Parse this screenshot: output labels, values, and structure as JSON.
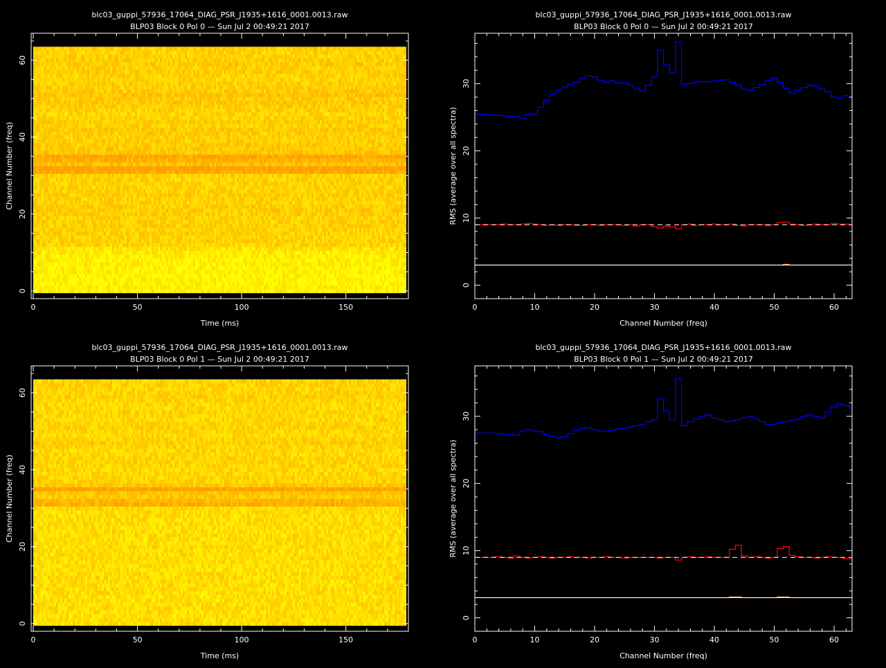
{
  "chart_data": [
    {
      "type": "heatmap",
      "title": "blc03_guppi_57936_17064_DIAG_PSR_J1935+1616_0001.0013.raw",
      "subtitle": "BLP03 Block 0 Pol 0 — Sun Jul  2 00:49:21 2017",
      "xlabel": "Time (ms)",
      "ylabel": "Channel Number (freq)",
      "xlim": [
        -1,
        180
      ],
      "ylim": [
        -2,
        67
      ],
      "xticks": [
        0,
        50,
        100,
        150
      ],
      "yticks": [
        0,
        20,
        40,
        60
      ],
      "x_extent": [
        0,
        179
      ],
      "y_extent": [
        -0.5,
        63.5
      ],
      "colormap": [
        "#ffff00",
        "#ffc800",
        "#ff9c00"
      ],
      "channel_intensity": [
        0.1,
        0.12,
        0.1,
        0.08,
        0.1,
        0.12,
        0.1,
        0.14,
        0.12,
        0.15,
        0.18,
        0.25,
        0.38,
        0.4,
        0.38,
        0.42,
        0.4,
        0.45,
        0.42,
        0.4,
        0.45,
        0.47,
        0.45,
        0.4,
        0.42,
        0.45,
        0.42,
        0.4,
        0.42,
        0.4,
        0.42,
        0.85,
        0.95,
        0.6,
        0.75,
        0.88,
        0.55,
        0.5,
        0.48,
        0.45,
        0.42,
        0.45,
        0.48,
        0.42,
        0.45,
        0.4,
        0.38,
        0.42,
        0.45,
        0.5,
        0.48,
        0.55,
        0.48,
        0.45,
        0.42,
        0.4,
        0.42,
        0.45,
        0.42,
        0.48,
        0.45,
        0.42,
        0.4,
        0.45
      ],
      "grid": false
    },
    {
      "type": "line",
      "title": "blc03_guppi_57936_17064_DIAG_PSR_J1935+1616_0001.0013.raw",
      "subtitle": "BLP03 Block 0 Pol 0 — Sun Jul  2 00:49:21 2017",
      "xlabel": "Channel Number (freq)",
      "ylabel": "RMS (average over all spectra)",
      "xlim": [
        0,
        63
      ],
      "ylim": [
        -2,
        37.5
      ],
      "xticks": [
        0,
        10,
        20,
        30,
        40,
        50,
        60
      ],
      "yticks": [
        0,
        10,
        20,
        30
      ],
      "step": true,
      "x": [
        0,
        1,
        2,
        3,
        4,
        5,
        6,
        7,
        8,
        9,
        10,
        11,
        12,
        13,
        14,
        15,
        16,
        17,
        18,
        19,
        20,
        21,
        22,
        23,
        24,
        25,
        26,
        27,
        28,
        29,
        30,
        31,
        32,
        33,
        34,
        35,
        36,
        37,
        38,
        39,
        40,
        41,
        42,
        43,
        44,
        45,
        46,
        47,
        48,
        49,
        50,
        51,
        52,
        53,
        54,
        55,
        56,
        57,
        58,
        59,
        60,
        61,
        62,
        63
      ],
      "series": [
        {
          "color": "#0000ff",
          "values": [
            25.5,
            25.4,
            25.4,
            25.3,
            25.3,
            25.2,
            25.1,
            25.1,
            24.8,
            25.4,
            25.5,
            26.5,
            27.5,
            28.4,
            29.0,
            29.5,
            29.9,
            30.2,
            30.8,
            31.2,
            31.0,
            30.5,
            30.2,
            30.4,
            30.1,
            30.2,
            29.8,
            29.2,
            28.9,
            29.8,
            31.0,
            35.0,
            32.8,
            31.6,
            36.2,
            29.9,
            30.0,
            30.2,
            30.3,
            30.3,
            30.4,
            30.5,
            30.6,
            30.2,
            29.8,
            29.2,
            29.0,
            29.4,
            29.9,
            30.4,
            30.8,
            30.2,
            29.3,
            28.6,
            29.0,
            29.4,
            29.8,
            29.6,
            29.2,
            28.8,
            28.0,
            27.8,
            28.2,
            28.0
          ]
        },
        {
          "color": "#ff0000",
          "values": [
            9.0,
            9.0,
            9.0,
            9.0,
            9.0,
            9.1,
            9.0,
            9.0,
            9.1,
            9.2,
            9.1,
            9.0,
            8.9,
            9.0,
            8.9,
            9.0,
            9.0,
            8.9,
            8.9,
            9.0,
            9.0,
            8.9,
            9.0,
            9.0,
            9.0,
            8.9,
            9.0,
            8.8,
            9.0,
            9.0,
            8.7,
            8.5,
            8.8,
            8.7,
            8.4,
            9.0,
            9.1,
            8.9,
            9.0,
            9.0,
            9.1,
            9.0,
            9.0,
            9.1,
            8.9,
            8.8,
            9.0,
            9.0,
            9.0,
            8.9,
            9.0,
            9.3,
            9.4,
            9.1,
            9.0,
            8.9,
            9.0,
            9.1,
            9.0,
            9.0,
            9.2,
            9.1,
            9.1,
            9.0
          ]
        },
        {
          "color": "#ffa040",
          "values": [
            3.0,
            3.0,
            3.0,
            3.0,
            3.0,
            3.0,
            3.0,
            3.0,
            3.0,
            3.0,
            3.0,
            3.0,
            3.0,
            3.0,
            3.0,
            3.0,
            3.0,
            3.0,
            3.0,
            3.0,
            3.0,
            3.0,
            3.0,
            3.0,
            3.0,
            3.0,
            3.0,
            3.0,
            3.0,
            3.0,
            3.0,
            3.0,
            3.0,
            3.0,
            3.0,
            3.0,
            3.0,
            3.0,
            3.0,
            3.0,
            3.0,
            3.0,
            3.0,
            3.0,
            3.0,
            3.0,
            3.0,
            3.0,
            3.0,
            3.0,
            3.0,
            3.0,
            3.1,
            3.0,
            3.0,
            3.0,
            3.0,
            3.0,
            3.0,
            3.0,
            3.0,
            3.0,
            3.0,
            3.0
          ]
        }
      ],
      "reference_lines": [
        {
          "y": 9.0,
          "style": "dashed",
          "color": "#ffffff"
        },
        {
          "y": 3.0,
          "style": "solid",
          "color": "#ffffff"
        }
      ],
      "grid": false
    },
    {
      "type": "heatmap",
      "title": "blc03_guppi_57936_17064_DIAG_PSR_J1935+1616_0001.0013.raw",
      "subtitle": "BLP03 Block 0 Pol 1 — Sun Jul  2 00:49:21 2017",
      "xlabel": "Time (ms)",
      "ylabel": "Channel Number (freq)",
      "xlim": [
        -1,
        180
      ],
      "ylim": [
        -2,
        67
      ],
      "xticks": [
        0,
        50,
        100,
        150
      ],
      "yticks": [
        0,
        20,
        40,
        60
      ],
      "x_extent": [
        0,
        179
      ],
      "y_extent": [
        -0.5,
        63.5
      ],
      "colormap": [
        "#ffff00",
        "#ffc800",
        "#ff9c00"
      ],
      "channel_intensity": [
        0.3,
        0.3,
        0.28,
        0.3,
        0.32,
        0.3,
        0.3,
        0.28,
        0.3,
        0.32,
        0.3,
        0.3,
        0.32,
        0.3,
        0.28,
        0.3,
        0.3,
        0.32,
        0.3,
        0.3,
        0.32,
        0.3,
        0.3,
        0.32,
        0.3,
        0.3,
        0.32,
        0.3,
        0.3,
        0.32,
        0.35,
        0.8,
        0.7,
        0.5,
        0.55,
        0.95,
        0.5,
        0.4,
        0.38,
        0.35,
        0.35,
        0.38,
        0.4,
        0.38,
        0.35,
        0.35,
        0.38,
        0.45,
        0.38,
        0.35,
        0.38,
        0.4,
        0.38,
        0.35,
        0.35,
        0.38,
        0.35,
        0.35,
        0.38,
        0.42,
        0.4,
        0.38,
        0.4,
        0.38
      ],
      "grid": false
    },
    {
      "type": "line",
      "title": "blc03_guppi_57936_17064_DIAG_PSR_J1935+1616_0001.0013.raw",
      "subtitle": "BLP03 Block 0 Pol 1 — Sun Jul  2 00:49:21 2017",
      "xlabel": "Channel Number (freq)",
      "ylabel": "RMS (average over all spectra)",
      "xlim": [
        0,
        63
      ],
      "ylim": [
        -2,
        37.5
      ],
      "xticks": [
        0,
        10,
        20,
        30,
        40,
        50,
        60
      ],
      "yticks": [
        0,
        10,
        20,
        30
      ],
      "step": true,
      "x": [
        0,
        1,
        2,
        3,
        4,
        5,
        6,
        7,
        8,
        9,
        10,
        11,
        12,
        13,
        14,
        15,
        16,
        17,
        18,
        19,
        20,
        21,
        22,
        23,
        24,
        25,
        26,
        27,
        28,
        29,
        30,
        31,
        32,
        33,
        34,
        35,
        36,
        37,
        38,
        39,
        40,
        41,
        42,
        43,
        44,
        45,
        46,
        47,
        48,
        49,
        50,
        51,
        52,
        53,
        54,
        55,
        56,
        57,
        58,
        59,
        60,
        61,
        62,
        63
      ],
      "series": [
        {
          "color": "#0000ff",
          "values": [
            27.4,
            27.5,
            27.5,
            27.5,
            27.4,
            27.3,
            27.3,
            27.2,
            27.8,
            28.0,
            27.8,
            27.7,
            27.3,
            27.0,
            26.8,
            27.0,
            27.4,
            27.9,
            28.2,
            28.3,
            28.0,
            27.8,
            27.8,
            27.9,
            28.1,
            28.2,
            28.4,
            28.6,
            28.8,
            29.2,
            29.5,
            32.6,
            30.8,
            29.5,
            35.6,
            28.6,
            29.2,
            29.6,
            30.0,
            30.2,
            29.8,
            29.5,
            29.2,
            29.3,
            29.5,
            29.8,
            30.0,
            29.6,
            29.2,
            28.8,
            28.8,
            29.0,
            29.2,
            29.4,
            29.6,
            30.0,
            30.2,
            30.0,
            29.8,
            30.6,
            31.4,
            31.8,
            31.6,
            31.2
          ]
        },
        {
          "color": "#ff0000",
          "values": [
            9.0,
            9.0,
            9.0,
            9.0,
            9.1,
            9.0,
            8.9,
            9.2,
            9.0,
            8.9,
            9.0,
            9.1,
            9.0,
            8.9,
            9.0,
            9.0,
            9.1,
            9.0,
            9.0,
            8.9,
            9.0,
            9.0,
            9.1,
            9.0,
            9.0,
            8.9,
            9.0,
            9.0,
            9.0,
            9.0,
            9.0,
            8.9,
            9.0,
            9.0,
            8.6,
            9.0,
            9.1,
            9.0,
            9.0,
            9.1,
            9.0,
            9.0,
            9.0,
            10.2,
            10.8,
            9.2,
            9.0,
            9.1,
            9.0,
            8.9,
            9.0,
            10.3,
            10.6,
            9.3,
            9.1,
            9.0,
            9.0,
            8.9,
            9.0,
            9.1,
            9.0,
            9.0,
            8.8,
            8.8
          ]
        },
        {
          "color": "#ffa040",
          "values": [
            3.0,
            3.0,
            3.0,
            3.0,
            3.0,
            3.0,
            3.0,
            3.0,
            3.0,
            3.0,
            3.0,
            3.0,
            3.0,
            3.0,
            3.0,
            3.0,
            3.0,
            3.0,
            3.0,
            3.0,
            3.0,
            3.0,
            3.0,
            3.0,
            3.0,
            3.0,
            3.0,
            3.0,
            3.0,
            3.0,
            3.0,
            3.0,
            3.0,
            3.0,
            3.0,
            3.0,
            3.0,
            3.0,
            3.0,
            3.0,
            3.0,
            3.0,
            3.0,
            3.1,
            3.1,
            3.0,
            3.0,
            3.0,
            3.0,
            3.0,
            3.0,
            3.1,
            3.1,
            3.0,
            3.0,
            3.0,
            3.0,
            3.0,
            3.0,
            3.0,
            3.0,
            3.0,
            3.0,
            3.0
          ]
        }
      ],
      "reference_lines": [
        {
          "y": 9.0,
          "style": "dashed",
          "color": "#ffffff"
        },
        {
          "y": 3.0,
          "style": "solid",
          "color": "#ffffff"
        }
      ],
      "grid": false
    }
  ]
}
